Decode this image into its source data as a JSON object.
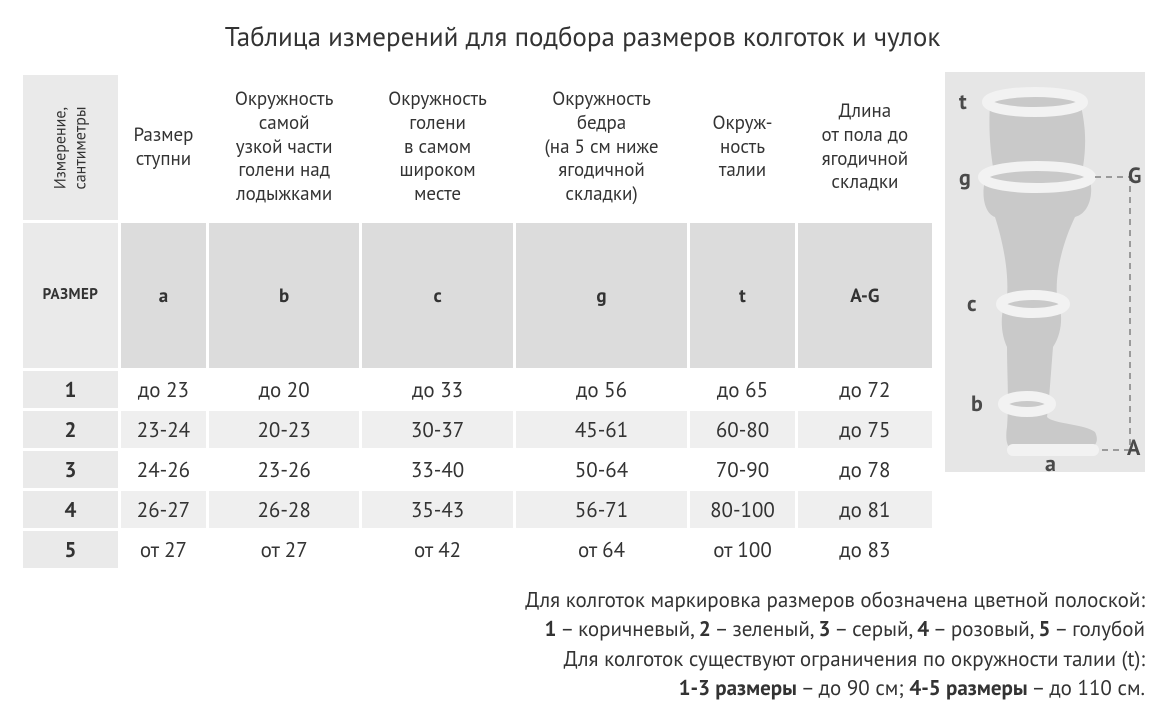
{
  "title": "Таблица измерений для подбора размеров колготок и чулок",
  "table": {
    "meas_label_l1": "Измерение,",
    "meas_label_l2": "сантиметры",
    "headers": [
      "Размер\nступни",
      "Окружность\nсамой\nузкой части\nголени над\nлодыжками",
      "Окружность\nголени\nв самом\nшироком\nместе",
      "Окружность\nбедра\n(на 5 см ниже\nягодичной\nскладки)",
      "Окруж-\nность\nталии",
      "Длина\nот пола до\nягодичной\nскладки"
    ],
    "size_label": "РАЗМЕР",
    "codes": [
      "a",
      "b",
      "c",
      "g",
      "t",
      "A-G"
    ],
    "rows": [
      {
        "size": "1",
        "cells": [
          "до 23",
          "до 20",
          "до 33",
          "до 56",
          "до 65",
          "до 72"
        ]
      },
      {
        "size": "2",
        "cells": [
          "23-24",
          "20-23",
          "30-37",
          "45-61",
          "60-80",
          "до 75"
        ]
      },
      {
        "size": "3",
        "cells": [
          "24-26",
          "23-26",
          "33-40",
          "50-64",
          "70-90",
          "до 78"
        ]
      },
      {
        "size": "4",
        "cells": [
          "26-27",
          "26-28",
          "35-43",
          "56-71",
          "80-100",
          "до 81"
        ]
      },
      {
        "size": "5",
        "cells": [
          "от 27",
          "от 27",
          "от 42",
          "от 64",
          "от 100",
          "до 83"
        ]
      }
    ]
  },
  "diagram": {
    "labels": {
      "t": "t",
      "g": "g",
      "G": "G",
      "c": "c",
      "b": "b",
      "a": "a",
      "A": "A"
    },
    "colors": {
      "bg": "#e6e6e6",
      "leg_fill": "#c9c9c9",
      "band": "#f2f2f2",
      "dash": "#9a9a9a"
    }
  },
  "notes": {
    "line1_pre": "Для колготок маркировка размеров обозначена цветной полоской:",
    "line2_items": [
      {
        "n": "1",
        "c": "коричневый"
      },
      {
        "n": "2",
        "c": "зеленый"
      },
      {
        "n": "3",
        "c": "серый"
      },
      {
        "n": "4",
        "c": "розовый"
      },
      {
        "n": "5",
        "c": "голубой"
      }
    ],
    "line3": "Для колготок существуют ограничения по окружности талии (t):",
    "line4_a_b": "1-3 размеры",
    "line4_a_t": " – до 90 см; ",
    "line4_b_b": "4-5 размеры",
    "line4_b_t": " – до 110 см."
  }
}
